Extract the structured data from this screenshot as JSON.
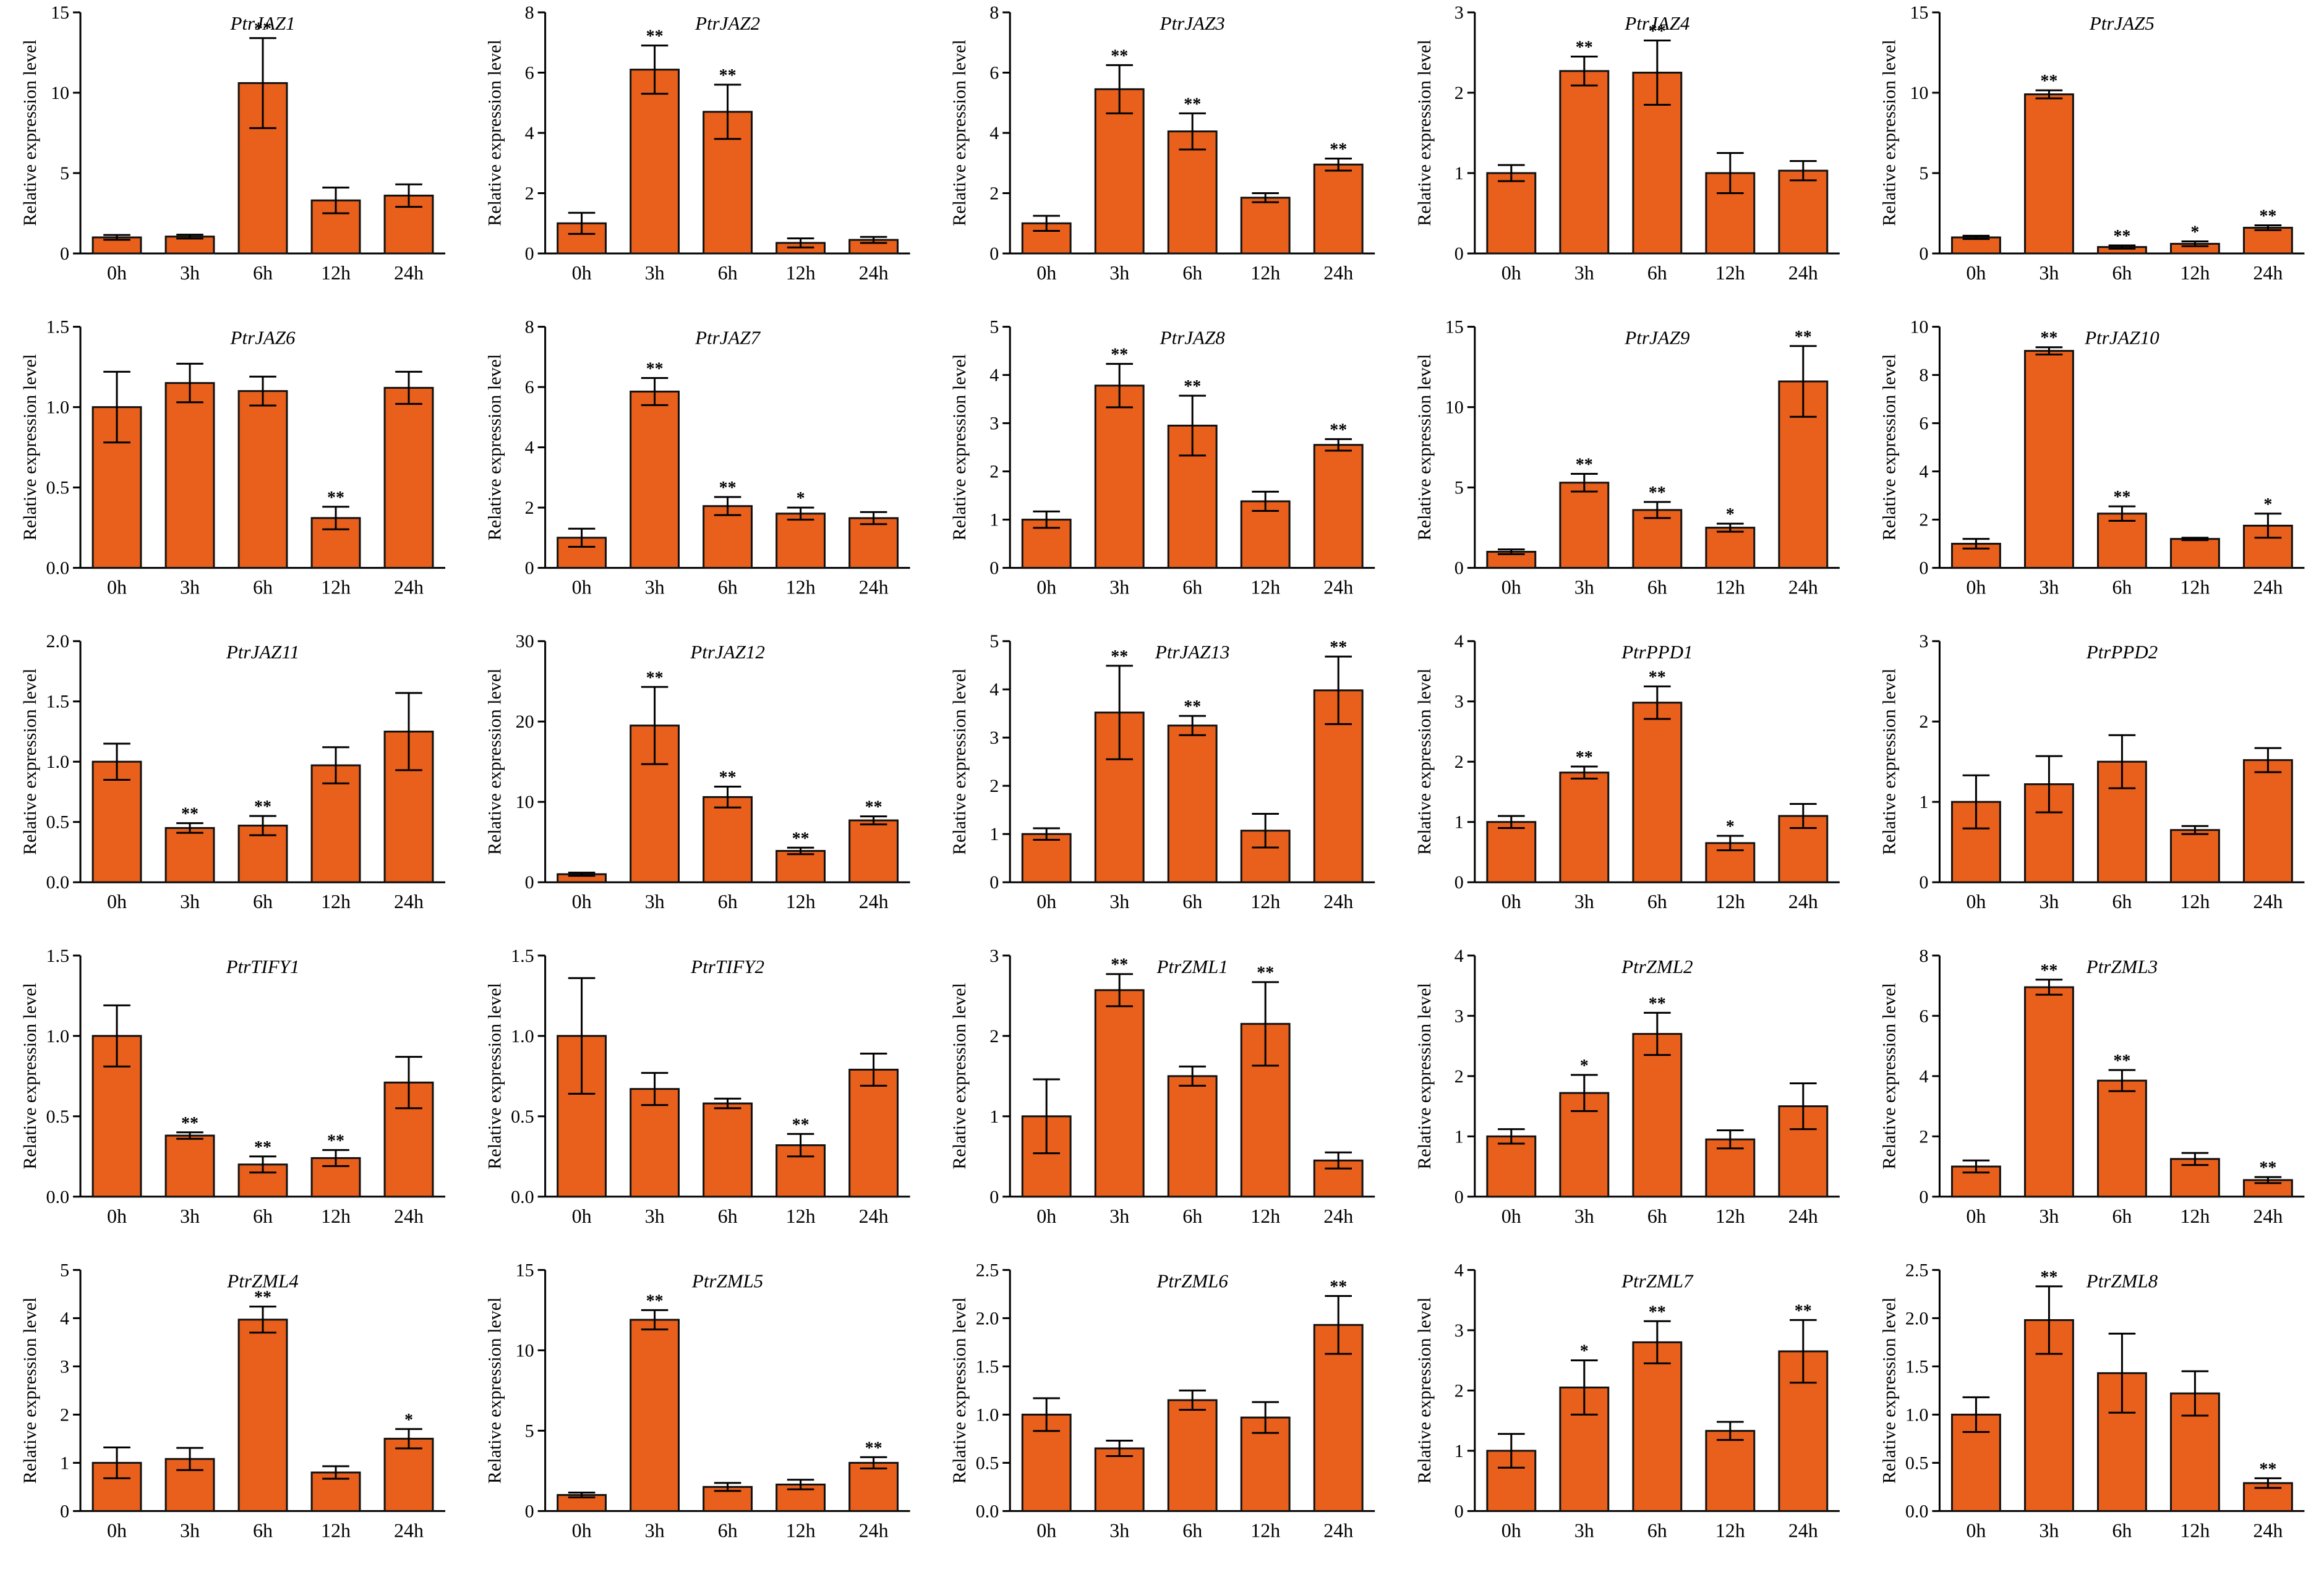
{
  "figure": {
    "bar_color": "#E8601C",
    "ylabel": "Relative expression level"
  },
  "chart_data": [
    {
      "type": "bar",
      "title": "PtrJAZ1",
      "ylabel": "Relative expression level",
      "categories": [
        "0h",
        "3h",
        "6h",
        "12h",
        "24h"
      ],
      "ylim": [
        0,
        15
      ],
      "yticks": [
        0,
        5,
        10,
        15
      ],
      "values": [
        1.0,
        1.05,
        10.6,
        3.3,
        3.6
      ],
      "errors": [
        0.15,
        0.12,
        2.8,
        0.8,
        0.7
      ],
      "significance": [
        "",
        "",
        "**",
        "",
        ""
      ]
    },
    {
      "type": "bar",
      "title": "PtrJAZ2",
      "ylabel": "Relative expression level",
      "categories": [
        "0h",
        "3h",
        "6h",
        "12h",
        "24h"
      ],
      "ylim": [
        0,
        8
      ],
      "yticks": [
        0,
        2,
        4,
        6,
        8
      ],
      "values": [
        1.0,
        6.1,
        4.7,
        0.35,
        0.45
      ],
      "errors": [
        0.35,
        0.8,
        0.9,
        0.15,
        0.1
      ],
      "significance": [
        "",
        "**",
        "**",
        "",
        ""
      ]
    },
    {
      "type": "bar",
      "title": "PtrJAZ3",
      "ylabel": "Relative expression level",
      "categories": [
        "0h",
        "3h",
        "6h",
        "12h",
        "24h"
      ],
      "ylim": [
        0,
        8
      ],
      "yticks": [
        0,
        2,
        4,
        6,
        8
      ],
      "values": [
        1.0,
        5.45,
        4.05,
        1.85,
        2.95
      ],
      "errors": [
        0.25,
        0.8,
        0.6,
        0.15,
        0.2
      ],
      "significance": [
        "",
        "**",
        "**",
        "",
        "**"
      ]
    },
    {
      "type": "bar",
      "title": "PtrJAZ4",
      "ylabel": "Relative expression level",
      "categories": [
        "0h",
        "3h",
        "6h",
        "12h",
        "24h"
      ],
      "ylim": [
        0,
        3
      ],
      "yticks": [
        0,
        1,
        2,
        3
      ],
      "values": [
        1.0,
        2.27,
        2.25,
        1.0,
        1.03
      ],
      "errors": [
        0.1,
        0.18,
        0.4,
        0.25,
        0.12
      ],
      "significance": [
        "",
        "**",
        "**",
        "",
        ""
      ]
    },
    {
      "type": "bar",
      "title": "PtrJAZ5",
      "ylabel": "Relative expression level",
      "categories": [
        "0h",
        "3h",
        "6h",
        "12h",
        "24h"
      ],
      "ylim": [
        0,
        15
      ],
      "yticks": [
        0,
        5,
        10,
        15
      ],
      "values": [
        1.0,
        9.9,
        0.4,
        0.6,
        1.6
      ],
      "errors": [
        0.1,
        0.25,
        0.1,
        0.15,
        0.15
      ],
      "significance": [
        "",
        "**",
        "**",
        "*",
        "**"
      ]
    },
    {
      "type": "bar",
      "title": "PtrJAZ6",
      "ylabel": "Relative expression level",
      "categories": [
        "0h",
        "3h",
        "6h",
        "12h",
        "24h"
      ],
      "ylim": [
        0,
        1.5
      ],
      "yticks": [
        0.0,
        0.5,
        1.0,
        1.5
      ],
      "values": [
        1.0,
        1.15,
        1.1,
        0.31,
        1.12
      ],
      "errors": [
        0.22,
        0.12,
        0.09,
        0.07,
        0.1
      ],
      "significance": [
        "",
        "",
        "",
        "**",
        ""
      ]
    },
    {
      "type": "bar",
      "title": "PtrJAZ7",
      "ylabel": "Relative expression level",
      "categories": [
        "0h",
        "3h",
        "6h",
        "12h",
        "24h"
      ],
      "ylim": [
        0,
        8
      ],
      "yticks": [
        0,
        2,
        4,
        6,
        8
      ],
      "values": [
        1.0,
        5.85,
        2.05,
        1.8,
        1.65
      ],
      "errors": [
        0.3,
        0.45,
        0.3,
        0.2,
        0.2
      ],
      "significance": [
        "",
        "**",
        "**",
        "*",
        ""
      ]
    },
    {
      "type": "bar",
      "title": "PtrJAZ8",
      "ylabel": "Relative expression level",
      "categories": [
        "0h",
        "3h",
        "6h",
        "12h",
        "24h"
      ],
      "ylim": [
        0,
        5
      ],
      "yticks": [
        0,
        1,
        2,
        3,
        4,
        5
      ],
      "values": [
        1.0,
        3.78,
        2.95,
        1.38,
        2.55
      ],
      "errors": [
        0.17,
        0.45,
        0.62,
        0.2,
        0.12
      ],
      "significance": [
        "",
        "**",
        "**",
        "",
        "**"
      ]
    },
    {
      "type": "bar",
      "title": "PtrJAZ9",
      "ylabel": "Relative expression level",
      "categories": [
        "0h",
        "3h",
        "6h",
        "12h",
        "24h"
      ],
      "ylim": [
        0,
        15
      ],
      "yticks": [
        0,
        5,
        10,
        15
      ],
      "values": [
        1.0,
        5.3,
        3.6,
        2.5,
        11.6
      ],
      "errors": [
        0.15,
        0.55,
        0.5,
        0.25,
        2.2
      ],
      "significance": [
        "",
        "**",
        "**",
        "*",
        "**"
      ]
    },
    {
      "type": "bar",
      "title": "PtrJAZ10",
      "ylabel": "Relative expression level",
      "categories": [
        "0h",
        "3h",
        "6h",
        "12h",
        "24h"
      ],
      "ylim": [
        0,
        10
      ],
      "yticks": [
        0,
        2,
        4,
        6,
        8,
        10
      ],
      "values": [
        1.0,
        9.0,
        2.25,
        1.2,
        1.75
      ],
      "errors": [
        0.2,
        0.15,
        0.3,
        0.05,
        0.5
      ],
      "significance": [
        "",
        "**",
        "**",
        "",
        "*"
      ]
    },
    {
      "type": "bar",
      "title": "PtrJAZ11",
      "ylabel": "Relative expression level",
      "categories": [
        "0h",
        "3h",
        "6h",
        "12h",
        "24h"
      ],
      "ylim": [
        0,
        2.0
      ],
      "yticks": [
        0.0,
        0.5,
        1.0,
        1.5,
        2.0
      ],
      "values": [
        1.0,
        0.45,
        0.47,
        0.97,
        1.25
      ],
      "errors": [
        0.15,
        0.04,
        0.08,
        0.15,
        0.32
      ],
      "significance": [
        "",
        "**",
        "**",
        "",
        ""
      ]
    },
    {
      "type": "bar",
      "title": "PtrJAZ12",
      "ylabel": "Relative expression level",
      "categories": [
        "0h",
        "3h",
        "6h",
        "12h",
        "24h"
      ],
      "ylim": [
        0,
        30
      ],
      "yticks": [
        0,
        10,
        20,
        30
      ],
      "values": [
        1.0,
        19.5,
        10.6,
        3.9,
        7.7
      ],
      "errors": [
        0.2,
        4.8,
        1.3,
        0.4,
        0.5
      ],
      "significance": [
        "",
        "**",
        "**",
        "**",
        "**"
      ]
    },
    {
      "type": "bar",
      "title": "PtrJAZ13",
      "ylabel": "Relative expression level",
      "categories": [
        "0h",
        "3h",
        "6h",
        "12h",
        "24h"
      ],
      "ylim": [
        0,
        5
      ],
      "yticks": [
        0,
        1,
        2,
        3,
        4,
        5
      ],
      "values": [
        1.0,
        3.52,
        3.25,
        1.07,
        3.98
      ],
      "errors": [
        0.12,
        0.97,
        0.2,
        0.35,
        0.7
      ],
      "significance": [
        "",
        "**",
        "**",
        "",
        "**"
      ]
    },
    {
      "type": "bar",
      "title": "PtrPPD1",
      "ylabel": "Relative expression level",
      "categories": [
        "0h",
        "3h",
        "6h",
        "12h",
        "24h"
      ],
      "ylim": [
        0,
        4
      ],
      "yticks": [
        0,
        1,
        2,
        3,
        4
      ],
      "values": [
        1.0,
        1.82,
        2.98,
        0.65,
        1.1
      ],
      "errors": [
        0.1,
        0.1,
        0.27,
        0.12,
        0.2
      ],
      "significance": [
        "",
        "**",
        "**",
        "*",
        ""
      ]
    },
    {
      "type": "bar",
      "title": "PtrPPD2",
      "ylabel": "Relative expression level",
      "categories": [
        "0h",
        "3h",
        "6h",
        "12h",
        "24h"
      ],
      "ylim": [
        0,
        3
      ],
      "yticks": [
        0,
        1,
        2,
        3
      ],
      "values": [
        1.0,
        1.22,
        1.5,
        0.65,
        1.52
      ],
      "errors": [
        0.33,
        0.35,
        0.33,
        0.05,
        0.15
      ],
      "significance": [
        "",
        "",
        "",
        "",
        ""
      ]
    },
    {
      "type": "bar",
      "title": "PtrTIFY1",
      "ylabel": "Relative expression level",
      "categories": [
        "0h",
        "3h",
        "6h",
        "12h",
        "24h"
      ],
      "ylim": [
        0,
        1.5
      ],
      "yticks": [
        0.0,
        0.5,
        1.0,
        1.5
      ],
      "values": [
        1.0,
        0.38,
        0.2,
        0.24,
        0.71
      ],
      "errors": [
        0.19,
        0.02,
        0.05,
        0.05,
        0.16
      ],
      "significance": [
        "",
        "**",
        "**",
        "**",
        ""
      ]
    },
    {
      "type": "bar",
      "title": "PtrTIFY2",
      "ylabel": "Relative expression level",
      "categories": [
        "0h",
        "3h",
        "6h",
        "12h",
        "24h"
      ],
      "ylim": [
        0,
        1.5
      ],
      "yticks": [
        0.0,
        0.5,
        1.0,
        1.5
      ],
      "values": [
        1.0,
        0.67,
        0.58,
        0.32,
        0.79
      ],
      "errors": [
        0.36,
        0.1,
        0.03,
        0.07,
        0.1
      ],
      "significance": [
        "",
        "",
        "",
        "**",
        ""
      ]
    },
    {
      "type": "bar",
      "title": "PtrZML1",
      "ylabel": "Relative expression level",
      "categories": [
        "0h",
        "3h",
        "6h",
        "12h",
        "24h"
      ],
      "ylim": [
        0,
        3
      ],
      "yticks": [
        0,
        1,
        2,
        3
      ],
      "values": [
        1.0,
        2.57,
        1.5,
        2.15,
        0.45
      ],
      "errors": [
        0.46,
        0.2,
        0.12,
        0.52,
        0.1
      ],
      "significance": [
        "",
        "**",
        "",
        "**",
        ""
      ]
    },
    {
      "type": "bar",
      "title": "PtrZML2",
      "ylabel": "Relative expression level",
      "categories": [
        "0h",
        "3h",
        "6h",
        "12h",
        "24h"
      ],
      "ylim": [
        0,
        4
      ],
      "yticks": [
        0,
        1,
        2,
        3,
        4
      ],
      "values": [
        1.0,
        1.72,
        2.7,
        0.95,
        1.5
      ],
      "errors": [
        0.12,
        0.3,
        0.35,
        0.15,
        0.38
      ],
      "significance": [
        "",
        "*",
        "**",
        "",
        ""
      ]
    },
    {
      "type": "bar",
      "title": "PtrZML3",
      "ylabel": "Relative expression level",
      "categories": [
        "0h",
        "3h",
        "6h",
        "12h",
        "24h"
      ],
      "ylim": [
        0,
        8
      ],
      "yticks": [
        0,
        2,
        4,
        6,
        8
      ],
      "values": [
        1.0,
        6.95,
        3.85,
        1.25,
        0.55
      ],
      "errors": [
        0.2,
        0.25,
        0.35,
        0.2,
        0.1
      ],
      "significance": [
        "",
        "**",
        "**",
        "",
        "**"
      ]
    },
    {
      "type": "bar",
      "title": "PtrZML4",
      "ylabel": "Relative expression level",
      "categories": [
        "0h",
        "3h",
        "6h",
        "12h",
        "24h"
      ],
      "ylim": [
        0,
        5
      ],
      "yticks": [
        0,
        1,
        2,
        3,
        4,
        5
      ],
      "values": [
        1.0,
        1.08,
        3.97,
        0.8,
        1.5
      ],
      "errors": [
        0.32,
        0.23,
        0.27,
        0.13,
        0.2
      ],
      "significance": [
        "",
        "",
        "**",
        "",
        "*"
      ]
    },
    {
      "type": "bar",
      "title": "PtrZML5",
      "ylabel": "Relative expression level",
      "categories": [
        "0h",
        "3h",
        "6h",
        "12h",
        "24h"
      ],
      "ylim": [
        0,
        15
      ],
      "yticks": [
        0,
        5,
        10,
        15
      ],
      "values": [
        1.0,
        11.9,
        1.5,
        1.65,
        3.0
      ],
      "errors": [
        0.15,
        0.6,
        0.25,
        0.3,
        0.35
      ],
      "significance": [
        "",
        "**",
        "",
        "",
        "**"
      ]
    },
    {
      "type": "bar",
      "title": "PtrZML6",
      "ylabel": "Relative expression level",
      "categories": [
        "0h",
        "3h",
        "6h",
        "12h",
        "24h"
      ],
      "ylim": [
        0,
        2.5
      ],
      "yticks": [
        0.0,
        0.5,
        1.0,
        1.5,
        2.0,
        2.5
      ],
      "values": [
        1.0,
        0.65,
        1.15,
        0.97,
        1.93
      ],
      "errors": [
        0.17,
        0.08,
        0.1,
        0.16,
        0.3
      ],
      "significance": [
        "",
        "",
        "",
        "",
        "**"
      ]
    },
    {
      "type": "bar",
      "title": "PtrZML7",
      "ylabel": "Relative expression level",
      "categories": [
        "0h",
        "3h",
        "6h",
        "12h",
        "24h"
      ],
      "ylim": [
        0,
        4
      ],
      "yticks": [
        0,
        1,
        2,
        3,
        4
      ],
      "values": [
        1.0,
        2.05,
        2.8,
        1.33,
        2.65
      ],
      "errors": [
        0.28,
        0.45,
        0.35,
        0.15,
        0.52
      ],
      "significance": [
        "",
        "*",
        "**",
        "",
        "**"
      ]
    },
    {
      "type": "bar",
      "title": "PtrZML8",
      "ylabel": "Relative expression level",
      "categories": [
        "0h",
        "3h",
        "6h",
        "12h",
        "24h"
      ],
      "ylim": [
        0,
        2.5
      ],
      "yticks": [
        0.0,
        0.5,
        1.0,
        1.5,
        2.0,
        2.5
      ],
      "values": [
        1.0,
        1.98,
        1.43,
        1.22,
        0.29
      ],
      "errors": [
        0.18,
        0.35,
        0.41,
        0.23,
        0.05
      ],
      "significance": [
        "",
        "**",
        "",
        "",
        "**"
      ]
    }
  ]
}
